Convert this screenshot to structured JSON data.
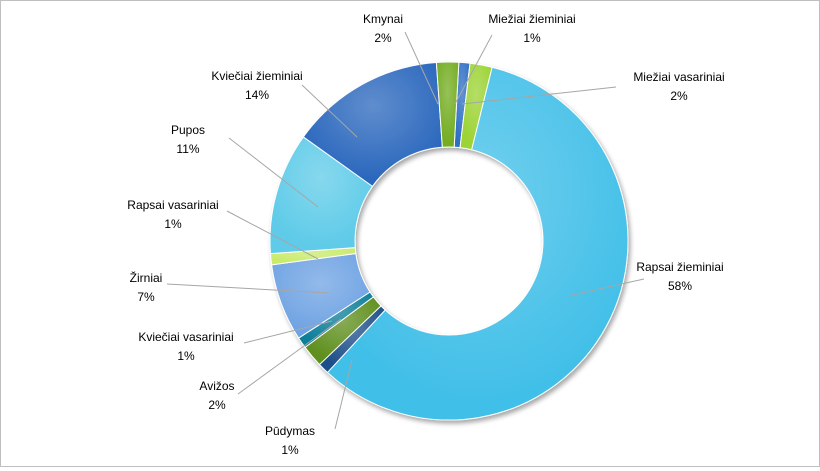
{
  "chart_data": {
    "type": "pie",
    "variant": "doughnut",
    "title": "",
    "legend": "none",
    "categories": [
      "Miežiai žieminiai",
      "Miežiai vasariniai",
      "Rapsai žieminiai",
      "Pūdymas",
      "Avižos",
      "Kviečiai vasariniai",
      "Žirniai",
      "Rapsai vasariniai",
      "Pupos",
      "Kviečiai žieminiai",
      "Kmynai"
    ],
    "values": [
      1,
      2,
      58,
      1,
      2,
      1,
      7,
      1,
      11,
      14,
      2
    ],
    "value_labels": [
      "1%",
      "2%",
      "58%",
      "1%",
      "2%",
      "1%",
      "7%",
      "1%",
      "11%",
      "14%",
      "2%"
    ],
    "colors": [
      "#2f6fc4",
      "#9cd334",
      "#41bfe8",
      "#1e4f8a",
      "#5f8f1e",
      "#0f7f9a",
      "#6fa3e3",
      "#c9ea6a",
      "#5ecbe8",
      "#2a67bd",
      "#74ad22"
    ],
    "label_positions": [
      "top-right",
      "top-right",
      "right",
      "bottom",
      "bottom-left",
      "left",
      "left",
      "left",
      "left",
      "top-left",
      "top"
    ]
  }
}
